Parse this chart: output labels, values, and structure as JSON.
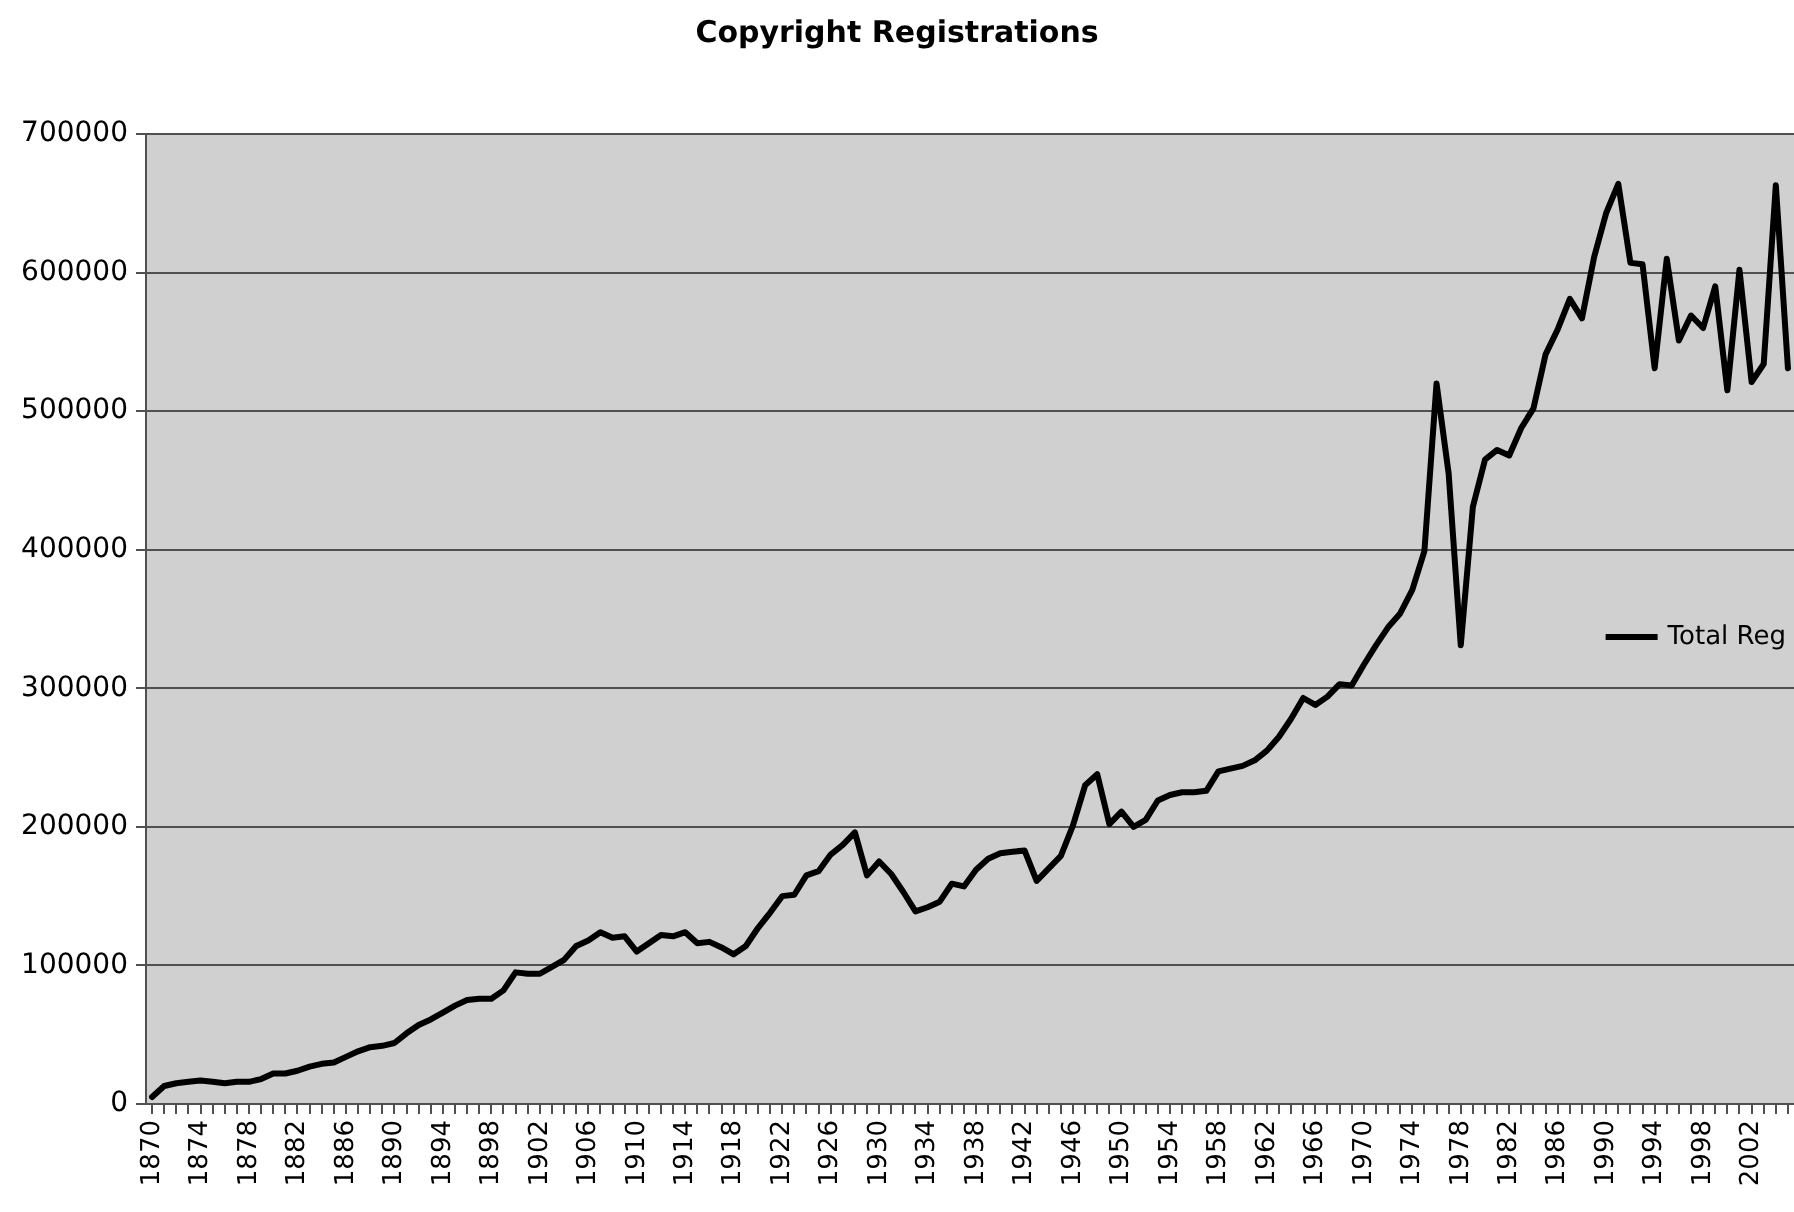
{
  "chart_data": {
    "type": "line",
    "title": "Copyright Registrations",
    "categories": [
      "1870",
      null,
      null,
      null,
      "1874",
      null,
      null,
      null,
      "1878",
      null,
      null,
      null,
      "1882",
      null,
      null,
      null,
      "1886",
      null,
      null,
      null,
      "1890",
      null,
      null,
      null,
      "1894",
      null,
      null,
      null,
      "1898",
      null,
      null,
      null,
      "1902",
      null,
      null,
      null,
      "1906",
      null,
      null,
      null,
      "1910",
      null,
      null,
      null,
      "1914",
      null,
      null,
      null,
      "1918",
      null,
      null,
      null,
      "1922",
      null,
      null,
      null,
      "1926",
      null,
      null,
      null,
      "1930",
      null,
      null,
      null,
      "1934",
      null,
      null,
      null,
      "1938",
      null,
      null,
      null,
      "1942",
      null,
      null,
      null,
      "1946",
      null,
      null,
      null,
      "1950",
      null,
      null,
      null,
      "1954",
      null,
      null,
      null,
      "1958",
      null,
      null,
      null,
      "1962",
      null,
      null,
      null,
      "1966",
      null,
      null,
      null,
      "1970",
      null,
      null,
      null,
      "1974",
      null,
      null,
      null,
      "1978",
      null,
      null,
      null,
      "1982",
      null,
      null,
      null,
      "1986",
      null,
      null,
      null,
      "1990",
      null,
      null,
      null,
      "1994",
      null,
      null,
      null,
      "1998",
      null,
      null,
      null,
      "2002",
      null,
      null,
      null
    ],
    "series": [
      {
        "name": "Total Reg",
        "color": "#000000",
        "values": [
          5000,
          13000,
          15000,
          16000,
          17000,
          16000,
          15000,
          16000,
          16000,
          18000,
          22000,
          22000,
          24000,
          27000,
          29000,
          30000,
          34000,
          38000,
          41000,
          42000,
          44000,
          51000,
          57000,
          61000,
          66000,
          71000,
          75000,
          76000,
          76000,
          82000,
          95000,
          94000,
          94000,
          99000,
          104000,
          114000,
          118000,
          124000,
          120000,
          121000,
          110000,
          116000,
          122000,
          121000,
          124000,
          116000,
          117000,
          113000,
          108000,
          114000,
          127000,
          138000,
          150000,
          151000,
          165000,
          168000,
          180000,
          187000,
          196000,
          165000,
          175000,
          166000,
          153000,
          139000,
          142000,
          146000,
          159000,
          157000,
          169000,
          177000,
          181000,
          182000,
          183000,
          161000,
          170000,
          179000,
          201000,
          230000,
          238000,
          202000,
          211000,
          200000,
          205000,
          219000,
          223000,
          225000,
          225000,
          226000,
          240000,
          242000,
          244000,
          248000,
          255000,
          265000,
          278000,
          293000,
          288000,
          294000,
          303000,
          302000,
          317000,
          331000,
          344000,
          354000,
          371000,
          399000,
          520000,
          455000,
          331000,
          431000,
          465000,
          472000,
          468000,
          488000,
          502000,
          541000,
          559000,
          581000,
          567000,
          611000,
          643000,
          664000,
          607000,
          606000,
          531000,
          610000,
          551000,
          569000,
          560000,
          590000,
          515000,
          602000,
          521000,
          534000,
          663000,
          531000
        ]
      }
    ],
    "ylim": [
      0,
      700000
    ],
    "yticks": [
      0,
      100000,
      200000,
      300000,
      400000,
      500000,
      600000,
      700000
    ],
    "grid": "y",
    "legend": "right"
  }
}
